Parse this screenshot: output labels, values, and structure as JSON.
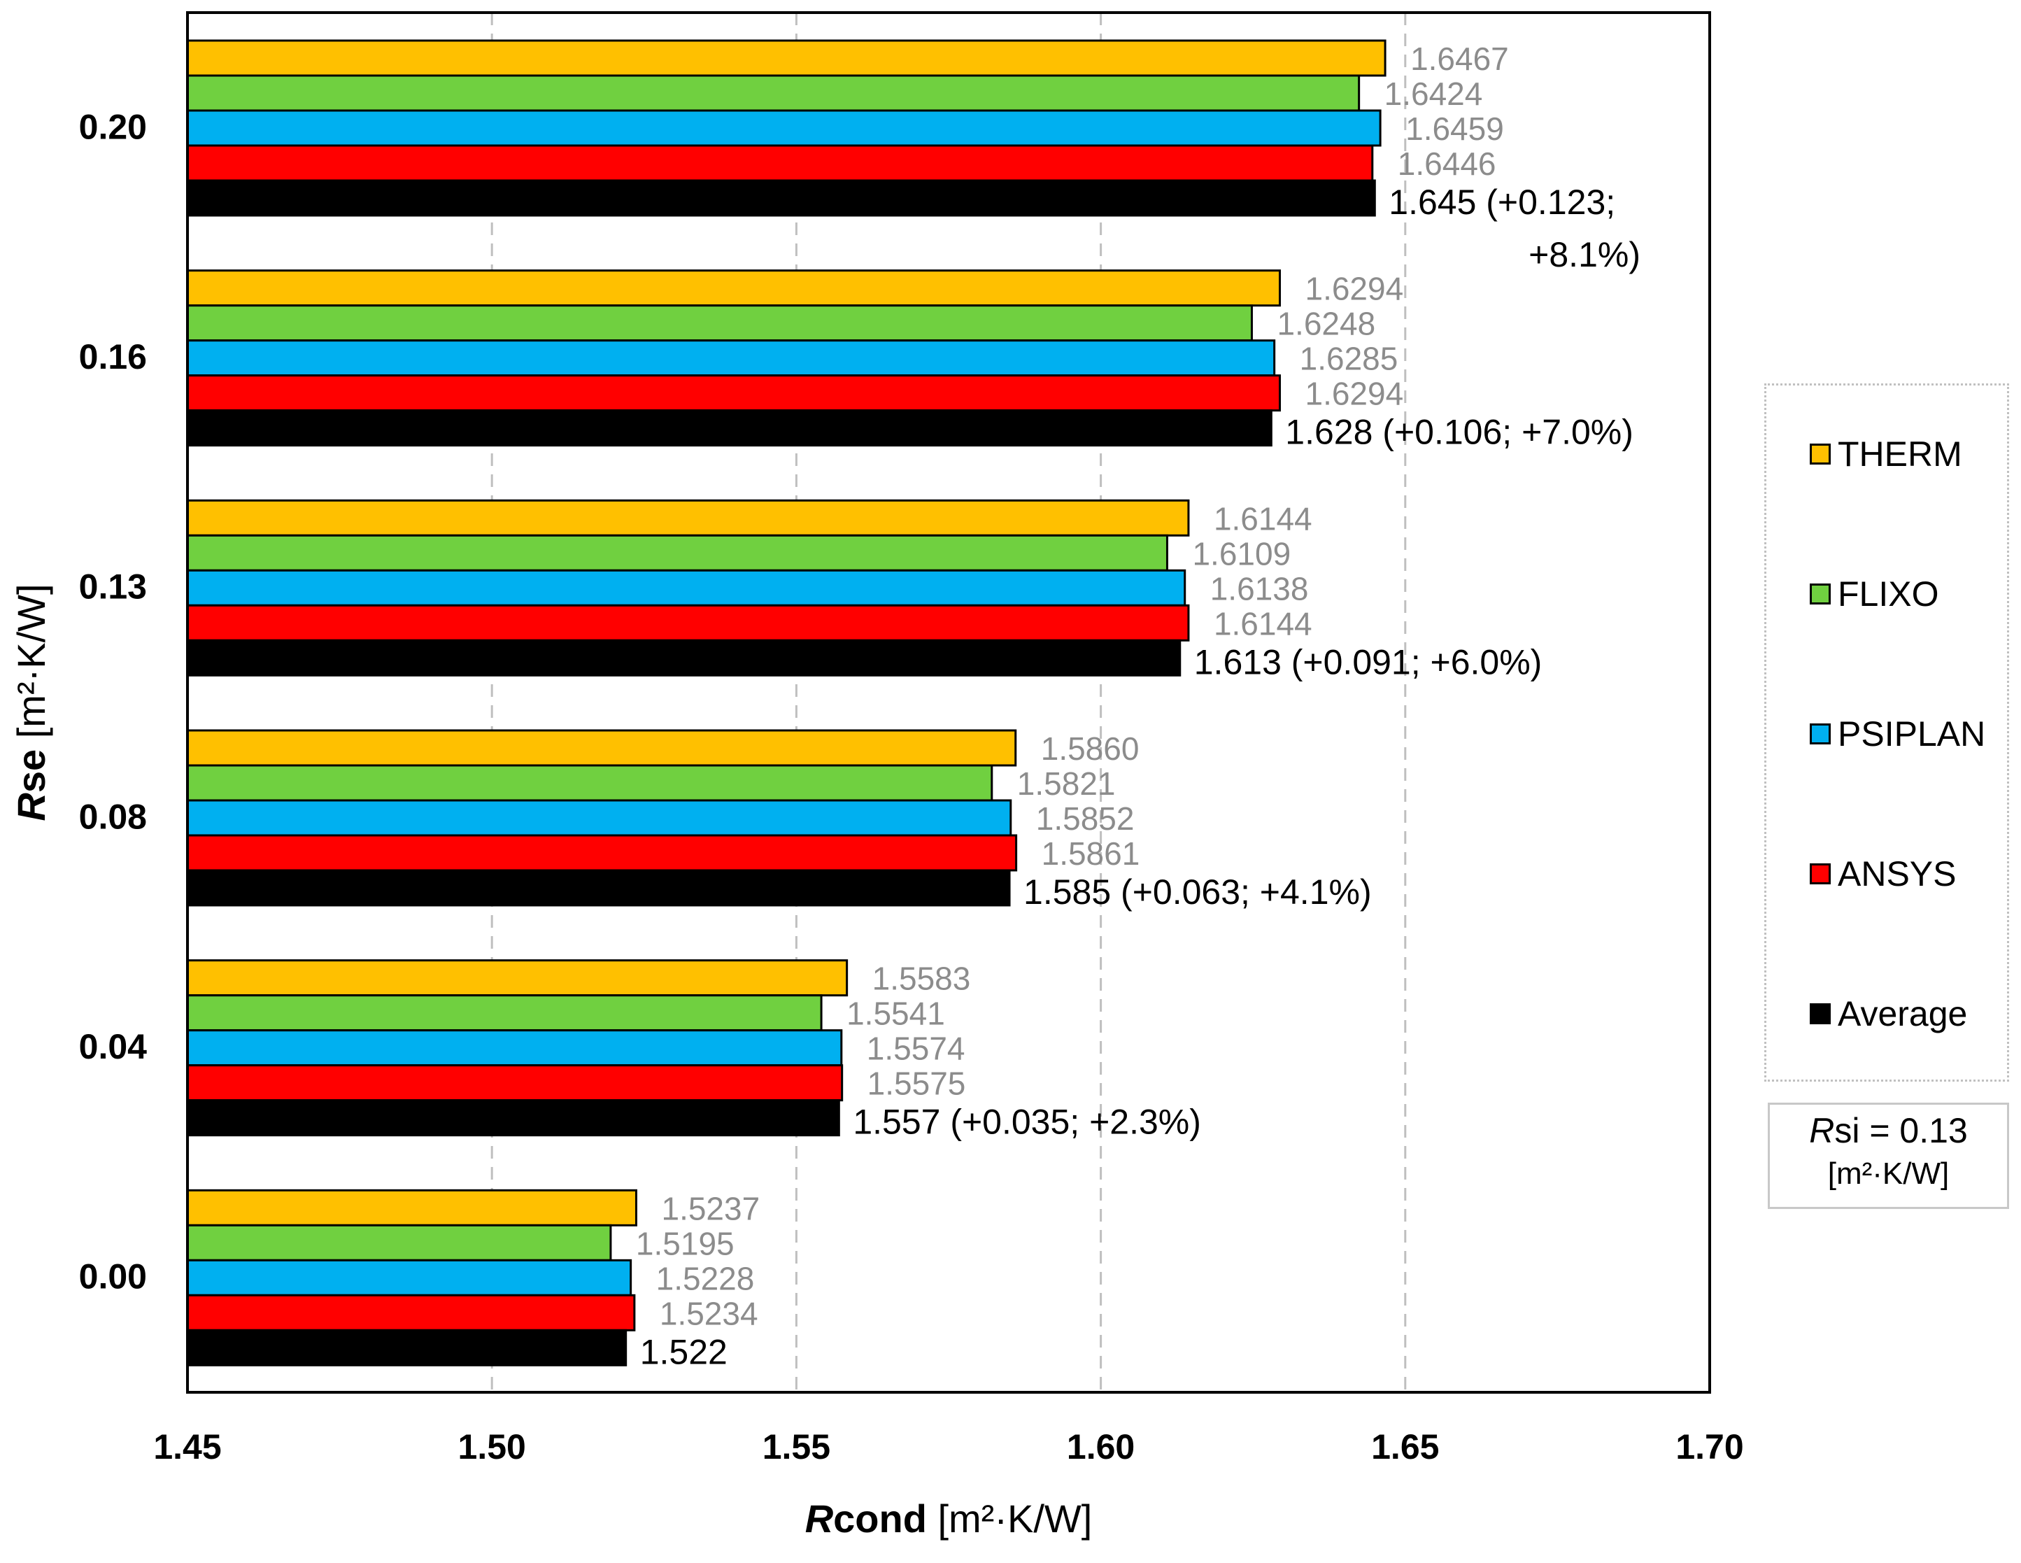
{
  "chart_data": {
    "type": "bar",
    "orientation": "horizontal",
    "xlabel": "Rcond [m²·K/W]",
    "xlabel_italic": "R",
    "xlabel_bold": "cond",
    "xlabel_unit": " [m²·K/W]",
    "ylabel": "Rse [m²·K/W]",
    "ylabel_italic": "R",
    "ylabel_bold": "se",
    "ylabel_unit": " [m²·K/W]",
    "xlim": [
      1.45,
      1.7
    ],
    "xticks": [
      "1.45",
      "1.50",
      "1.55",
      "1.60",
      "1.65",
      "1.70"
    ],
    "xtick_values": [
      1.45,
      1.5,
      1.55,
      1.6,
      1.65,
      1.7
    ],
    "gridlines": "vertical dashed",
    "categories": [
      "0.20",
      "0.16",
      "0.13",
      "0.08",
      "0.04",
      "0.00"
    ],
    "series": [
      {
        "name": "THERM",
        "color": "#FFC000",
        "values": [
          1.6467,
          1.6294,
          1.6144,
          1.586,
          1.5583,
          1.5237
        ],
        "labels": [
          "1.6467",
          "1.6294",
          "1.6144",
          "1.5860",
          "1.5583",
          "1.5237"
        ]
      },
      {
        "name": "FLIXO",
        "color": "#70D040",
        "values": [
          1.6424,
          1.6248,
          1.6109,
          1.5821,
          1.5541,
          1.5195
        ],
        "labels": [
          "1.6424",
          "1.6248",
          "1.6109",
          "1.5821",
          "1.5541",
          "1.5195"
        ]
      },
      {
        "name": "PSIPLAN",
        "color": "#00B0F0",
        "values": [
          1.6459,
          1.6285,
          1.6138,
          1.5852,
          1.5574,
          1.5228
        ],
        "labels": [
          "1.6459",
          "1.6285",
          "1.6138",
          "1.5852",
          "1.5574",
          "1.5228"
        ]
      },
      {
        "name": "ANSYS",
        "color": "#FF0000",
        "values": [
          1.6446,
          1.6294,
          1.6144,
          1.5861,
          1.5575,
          1.5234
        ],
        "labels": [
          "1.6446",
          "1.6294",
          "1.6144",
          "1.5861",
          "1.5575",
          "1.5234"
        ]
      },
      {
        "name": "Average",
        "color": "#000000",
        "values": [
          1.645,
          1.628,
          1.613,
          1.585,
          1.557,
          1.522
        ],
        "labels": [
          [
            "1.645 (+0.123;",
            "+8.1%)"
          ],
          [
            "1.628 (+0.106; +7.0%)"
          ],
          [
            "1.613 (+0.091; +6.0%)"
          ],
          [
            "1.585 (+0.063; +4.1%)"
          ],
          [
            "1.557 (+0.035; +2.3%)"
          ],
          [
            "1.522"
          ]
        ]
      }
    ],
    "value_label_color": "#8C8C8C",
    "average_label_color": "#000000",
    "legend_position": "right",
    "annotation": {
      "line1_italic": "R",
      "line1_rest": "si = 0.13",
      "line2": "[m²·K/W]"
    }
  }
}
